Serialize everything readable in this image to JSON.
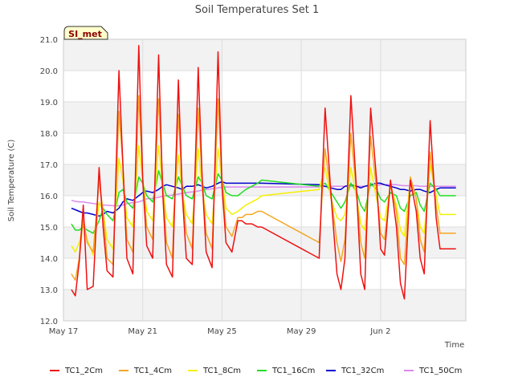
{
  "chart_data": {
    "type": "line",
    "title": "Soil Temperatures Set 1",
    "xlabel": "Time",
    "ylabel": "Soil Temperature (C)",
    "badge": "SI_met",
    "ylim": [
      12.0,
      21.0
    ],
    "yticks": [
      "12.0",
      "13.0",
      "14.0",
      "15.0",
      "16.0",
      "17.0",
      "18.0",
      "19.0",
      "20.0",
      "21.0"
    ],
    "xlim": [
      0.0,
      20.3
    ],
    "xtick_labels": [
      "May 17",
      "May 21",
      "May 25",
      "May 29",
      "Jun 2"
    ],
    "grid": true,
    "banded_background": true,
    "legend_placement": "bottom",
    "colors": {
      "TC1_2Cm": "#ee1111",
      "TC1_4Cm": "#f5a623",
      "TC1_8Cm": "#f5f000",
      "TC1_16Cm": "#22dd22",
      "TC1_32Cm": "#0000cc",
      "TC1_50Cm": "#dd88ee"
    },
    "x": [
      0.4,
      0.6,
      0.8,
      1.0,
      1.2,
      1.5,
      1.8,
      2.0,
      2.2,
      2.5,
      2.8,
      3.0,
      3.2,
      3.5,
      3.8,
      4.0,
      4.2,
      4.5,
      4.8,
      5.0,
      5.2,
      5.5,
      5.8,
      6.0,
      6.2,
      6.5,
      6.8,
      7.0,
      7.2,
      7.5,
      7.8,
      8.0,
      8.2,
      8.5,
      8.8,
      9.0,
      9.2,
      9.5,
      9.8,
      10.0,
      12.9,
      13.2,
      13.5,
      13.8,
      14.0,
      14.2,
      14.5,
      14.8,
      15.0,
      15.2,
      15.5,
      15.8,
      16.0,
      16.2,
      16.5,
      16.8,
      17.0,
      17.2,
      17.5,
      17.8,
      18.0,
      18.2,
      18.5,
      18.8,
      19.0,
      19.2,
      19.5,
      19.8
    ],
    "series": [
      {
        "name": "TC1_2Cm",
        "values": [
          13.0,
          12.8,
          13.9,
          15.7,
          13.0,
          13.1,
          16.9,
          15.0,
          13.6,
          13.4,
          20.0,
          17.0,
          14.0,
          13.5,
          20.8,
          16.5,
          14.4,
          14.0,
          20.5,
          16.2,
          13.8,
          13.4,
          19.7,
          16.0,
          14.0,
          13.8,
          20.1,
          16.5,
          14.2,
          13.7,
          20.6,
          16.3,
          14.5,
          14.2,
          15.2,
          15.2,
          15.1,
          15.1,
          15.0,
          15.0,
          14.0,
          18.8,
          16.0,
          13.5,
          13.0,
          14.0,
          19.2,
          16.0,
          13.5,
          13.0,
          18.8,
          16.5,
          14.3,
          14.1,
          16.5,
          15.0,
          13.2,
          12.7,
          16.5,
          15.5,
          14.0,
          13.5,
          18.4,
          15.3,
          14.3,
          14.3,
          14.3,
          14.3
        ]
      },
      {
        "name": "TC1_4Cm",
        "values": [
          13.5,
          13.3,
          14.0,
          15.3,
          14.5,
          14.2,
          16.5,
          15.5,
          14.0,
          13.8,
          18.7,
          17.0,
          14.6,
          14.2,
          19.2,
          16.6,
          15.0,
          14.6,
          19.1,
          16.5,
          14.5,
          14.0,
          18.6,
          16.2,
          14.8,
          14.3,
          18.8,
          16.5,
          14.8,
          14.3,
          19.1,
          16.5,
          15.0,
          14.7,
          15.3,
          15.3,
          15.4,
          15.4,
          15.5,
          15.5,
          14.5,
          17.5,
          16.0,
          14.5,
          13.9,
          14.6,
          18.0,
          16.0,
          14.5,
          14.0,
          17.9,
          16.2,
          14.8,
          14.6,
          16.4,
          15.5,
          14.0,
          13.8,
          16.6,
          15.9,
          14.6,
          14.2,
          17.4,
          15.7,
          14.8,
          14.8,
          14.8,
          14.8
        ]
      },
      {
        "name": "TC1_8Cm",
        "values": [
          14.4,
          14.2,
          14.5,
          15.1,
          14.6,
          14.1,
          15.8,
          15.5,
          14.6,
          14.3,
          17.2,
          16.5,
          15.3,
          15.0,
          17.6,
          16.5,
          15.5,
          15.2,
          17.6,
          16.3,
          15.3,
          15.0,
          17.3,
          16.1,
          15.4,
          15.1,
          17.5,
          16.2,
          15.4,
          15.1,
          17.5,
          16.5,
          15.6,
          15.4,
          15.5,
          15.6,
          15.7,
          15.8,
          15.9,
          16.0,
          16.2,
          16.9,
          15.9,
          15.3,
          15.2,
          15.4,
          16.9,
          15.9,
          15.1,
          14.9,
          16.9,
          15.9,
          15.3,
          15.2,
          16.3,
          15.7,
          14.9,
          14.7,
          16.5,
          15.9,
          15.0,
          14.8,
          17.0,
          16.0,
          15.4,
          15.4,
          15.4,
          15.4
        ]
      },
      {
        "name": "TC1_16Cm",
        "values": [
          15.1,
          14.9,
          14.9,
          15.0,
          14.9,
          14.8,
          15.2,
          15.6,
          15.4,
          15.2,
          16.1,
          16.2,
          15.8,
          15.6,
          16.6,
          16.4,
          16.0,
          15.8,
          16.8,
          16.4,
          16.0,
          15.9,
          16.6,
          16.3,
          16.0,
          15.9,
          16.6,
          16.4,
          16.0,
          15.9,
          16.7,
          16.5,
          16.1,
          16.0,
          16.0,
          16.1,
          16.2,
          16.3,
          16.4,
          16.5,
          16.3,
          16.4,
          16.1,
          15.8,
          15.6,
          15.8,
          16.4,
          16.1,
          15.7,
          15.5,
          16.4,
          16.2,
          15.9,
          15.8,
          16.1,
          16.0,
          15.6,
          15.5,
          16.0,
          16.1,
          15.7,
          15.5,
          16.4,
          16.2,
          16.0,
          16.0,
          16.0,
          16.0
        ]
      },
      {
        "name": "TC1_32Cm",
        "values": [
          15.6,
          15.55,
          15.5,
          15.45,
          15.45,
          15.4,
          15.35,
          15.4,
          15.5,
          15.45,
          15.6,
          15.8,
          15.9,
          15.85,
          16.0,
          16.1,
          16.15,
          16.1,
          16.2,
          16.3,
          16.35,
          16.3,
          16.25,
          16.2,
          16.3,
          16.3,
          16.35,
          16.3,
          16.25,
          16.3,
          16.4,
          16.45,
          16.4,
          16.4,
          16.4,
          16.4,
          16.4,
          16.4,
          16.4,
          16.4,
          16.35,
          16.3,
          16.25,
          16.2,
          16.2,
          16.3,
          16.35,
          16.3,
          16.25,
          16.3,
          16.35,
          16.4,
          16.4,
          16.35,
          16.3,
          16.25,
          16.2,
          16.2,
          16.15,
          16.2,
          16.2,
          16.15,
          16.1,
          16.2,
          16.25,
          16.25,
          16.25,
          16.25
        ]
      },
      {
        "name": "TC1_50Cm",
        "values": [
          15.85,
          15.82,
          15.8,
          15.8,
          15.78,
          15.75,
          15.72,
          15.7,
          15.7,
          15.68,
          15.68,
          15.7,
          15.75,
          15.78,
          15.8,
          15.85,
          15.9,
          15.92,
          15.95,
          15.98,
          16.0,
          16.02,
          16.05,
          16.08,
          16.1,
          16.12,
          16.15,
          16.18,
          16.2,
          16.22,
          16.25,
          16.27,
          16.28,
          16.28,
          16.28,
          16.28,
          16.28,
          16.28,
          16.28,
          16.28,
          16.28,
          16.3,
          16.3,
          16.3,
          16.3,
          16.3,
          16.3,
          16.3,
          16.3,
          16.3,
          16.32,
          16.33,
          16.35,
          16.35,
          16.35,
          16.35,
          16.33,
          16.32,
          16.32,
          16.32,
          16.3,
          16.3,
          16.3,
          16.3,
          16.3,
          16.3,
          16.3,
          16.3
        ]
      }
    ]
  }
}
